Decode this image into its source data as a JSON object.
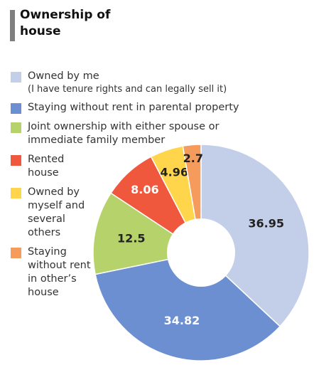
{
  "chart_data": {
    "type": "donut",
    "title": "Ownership of house",
    "legend_note": "(I have tenure rights and can legally sell it)",
    "series": [
      {
        "name": "Owned by me",
        "color": "#c3cfe9",
        "value": 36.95
      },
      {
        "name": "Staying without rent in parental property",
        "color": "#6b8fd1",
        "value": 34.82
      },
      {
        "name": "Joint ownership with either spouse or immediate family member",
        "color": "#b6d36b",
        "value": 12.5
      },
      {
        "name": "Rented house",
        "color": "#f0583d",
        "value": 8.06
      },
      {
        "name": "Owned by myself and several others",
        "color": "#ffd64b",
        "value": 4.96
      },
      {
        "name": "Staying without rent in other’s house",
        "color": "#f59b5c",
        "value": 2.7
      }
    ]
  }
}
